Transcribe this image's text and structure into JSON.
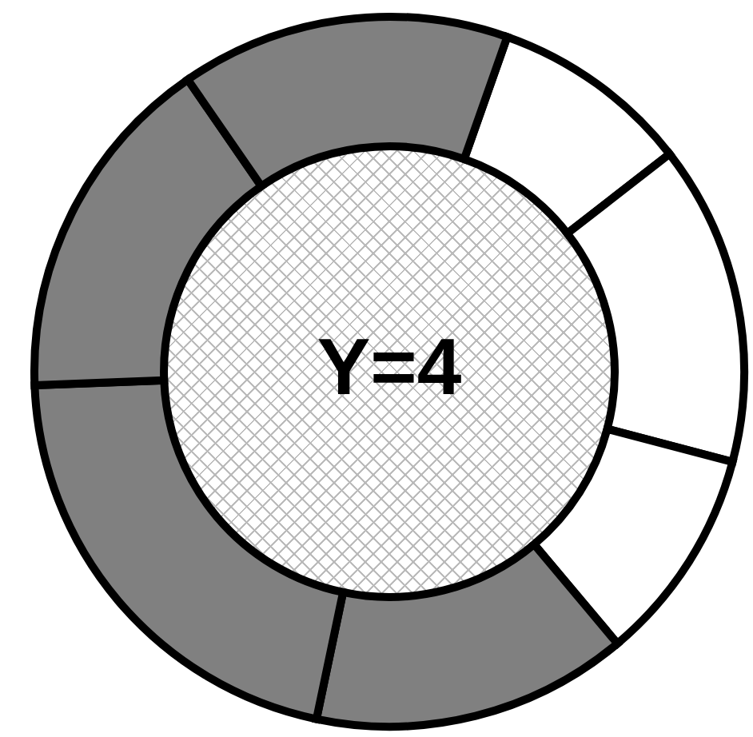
{
  "chart_data": {
    "type": "donut",
    "categories": [
      null,
      null,
      null,
      null,
      null,
      null,
      null
    ],
    "values": [
      9.1,
      14.6,
      9.8,
      14.4,
      21.1,
      16.0,
      15.0
    ],
    "colors": [
      "#ffffff",
      "#ffffff",
      "#ffffff",
      "#808080",
      "#808080",
      "#808080",
      "#808080"
    ],
    "annotations": [
      "Y=4"
    ],
    "legend": false
  }
}
